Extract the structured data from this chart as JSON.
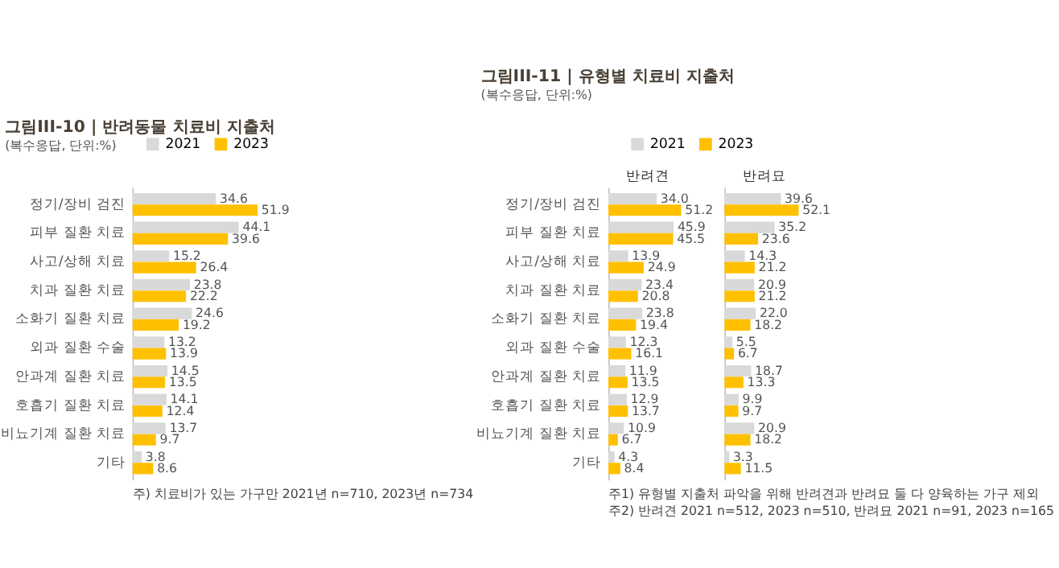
{
  "chart_data": [
    {
      "type": "bar",
      "orientation": "horizontal",
      "title": "그림III-10 | 반려동물 치료비 지출처",
      "subtitle": "(복수응답, 단위:%)",
      "categories": [
        "정기/장비 검진",
        "피부 질환 치료",
        "사고/상해 치료",
        "치과 질환 치료",
        "소화기 질환 치료",
        "외과 질환 수술",
        "안과계 질환 치료",
        "호흡기 질환 치료",
        "비뇨기계 질환 치료",
        "기타"
      ],
      "series": [
        {
          "name": "2021",
          "color": "#d9d9d9",
          "values": [
            34.6,
            44.1,
            15.2,
            23.8,
            24.6,
            13.2,
            14.5,
            14.1,
            13.7,
            3.8
          ],
          "value_labels": [
            "34.6",
            "44.1",
            "15.2",
            "23.8",
            "24.6",
            "13.2",
            "14.5",
            "14.1",
            "13.7",
            "3.8"
          ]
        },
        {
          "name": "2023",
          "color": "#ffc000",
          "values": [
            51.9,
            39.6,
            26.4,
            22.2,
            19.2,
            13.9,
            13.5,
            12.4,
            9.7,
            8.6
          ],
          "value_labels": [
            "51.9",
            "39.6",
            "26.4",
            "22.2",
            "19.2",
            "13.9",
            "13.5",
            "12.4",
            "9.7",
            "8.6"
          ]
        }
      ],
      "legend": "top right",
      "tick_labels": "y",
      "annotations": [
        "주) 치료비가 있는 가구만 2021년 n=710, 2023년 n=734"
      ]
    },
    {
      "type": "bar",
      "orientation": "horizontal",
      "title": "그림III-11 | 유형별 치료비 지출처",
      "subtitle": "(복수응답, 단위:%)",
      "xlabel": "반려견",
      "categories": [
        "정기/장비 검진",
        "피부 질환 치료",
        "사고/상해 치료",
        "치과 질환 치료",
        "소화기 질환 치료",
        "외과 질환 수술",
        "안과계 질환 치료",
        "호흡기 질환 치료",
        "비뇨기계 질환 치료",
        "기타"
      ],
      "series": [
        {
          "name": "2021",
          "color": "#d9d9d9",
          "values": [
            34.0,
            45.9,
            13.9,
            23.4,
            23.8,
            12.3,
            11.9,
            12.9,
            10.9,
            4.3
          ],
          "value_labels": [
            "34.0",
            "45.9",
            "13.9",
            "23.4",
            "23.8",
            "12.3",
            "11.9",
            "12.9",
            "10.9",
            "4.3"
          ]
        },
        {
          "name": "2023",
          "color": "#ffc000",
          "values": [
            51.2,
            45.5,
            24.9,
            20.8,
            19.4,
            16.1,
            13.5,
            13.7,
            6.7,
            8.4
          ],
          "value_labels": [
            "51.2",
            "45.5",
            "24.9",
            "20.8",
            "19.4",
            "16.1",
            "13.5",
            "13.7",
            "6.7",
            "8.4"
          ]
        }
      ],
      "legend": "top right",
      "tick_labels": "y",
      "annotations": [
        "주1) 유형별 지출처 파악을 위해 반려견과 반려묘 둘 다 양육하는 가구 제외",
        "주2) 반려견 2021 n=512, 2023 n=510, 반려묘 2021 n=91, 2023 n=165"
      ]
    },
    {
      "type": "bar",
      "orientation": "horizontal",
      "xlabel": "반려묘",
      "series": [
        {
          "name": "2021",
          "color": "#d9d9d9",
          "values": [
            39.6,
            35.2,
            14.3,
            20.9,
            22.0,
            5.5,
            18.7,
            9.9,
            20.9,
            3.3
          ],
          "value_labels": [
            "39.6",
            "35.2",
            "14.3",
            "20.9",
            "22.0",
            "5.5",
            "18.7",
            "9.9",
            "20.9",
            "3.3"
          ]
        },
        {
          "name": "2023",
          "color": "#ffc000",
          "values": [
            52.1,
            23.6,
            21.2,
            21.2,
            18.2,
            6.7,
            13.3,
            9.7,
            18.2,
            11.5
          ],
          "value_labels": [
            "52.1",
            "23.6",
            "21.2",
            "21.2",
            "18.2",
            "6.7",
            "13.3",
            "9.7",
            "18.2",
            "11.5"
          ]
        }
      ],
      "tick_labels": false
    }
  ]
}
